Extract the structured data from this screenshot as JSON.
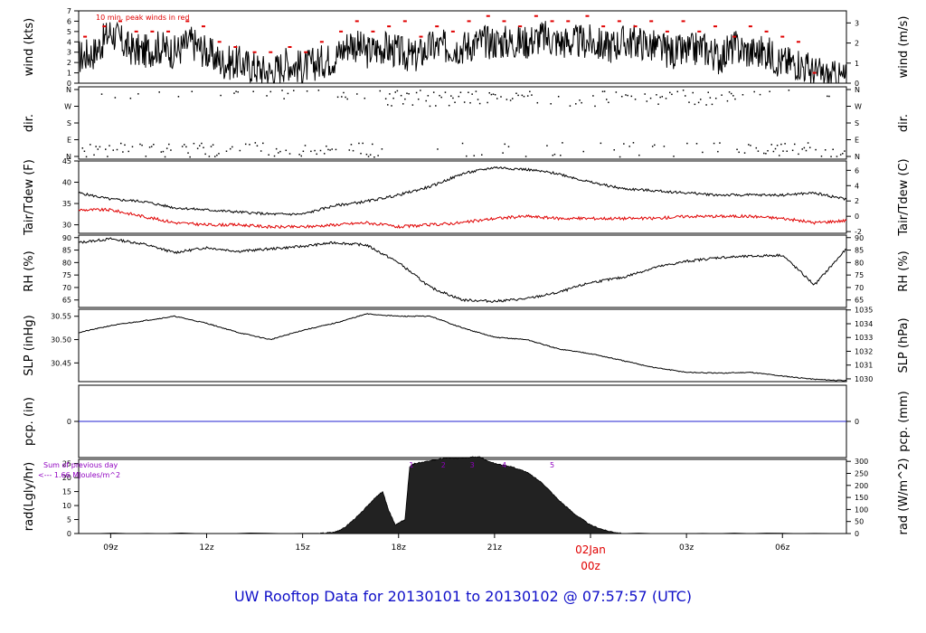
{
  "title": "UW Rooftop Data for 20130101  to  20130102 @ 07:57:57  (UTC)",
  "colors": {
    "axis": "#000000",
    "trace": "#000000",
    "dewpoint": "#e00000",
    "peak": "#e00000",
    "precip": "#2020d0",
    "annot": "#9000c0",
    "day_label": "#e00000",
    "title": "#1010c8"
  },
  "x_axis": {
    "ticks": [
      {
        "hour": 9,
        "label": "09z"
      },
      {
        "hour": 12,
        "label": "12z"
      },
      {
        "hour": 15,
        "label": "15z"
      },
      {
        "hour": 18,
        "label": "18z"
      },
      {
        "hour": 21,
        "label": "21z"
      },
      {
        "hour": 27,
        "label": "03z"
      },
      {
        "hour": 30,
        "label": "06z"
      }
    ],
    "day_marker": {
      "hour": 24,
      "day": "02Jan",
      "time": "00z"
    }
  },
  "panels": {
    "wind": {
      "left_label": "wind (kts)",
      "right_label": "wind (m/s)",
      "note": "10 min. peak winds in red",
      "left_ticks": [
        "0",
        "1",
        "2",
        "3",
        "4",
        "5",
        "6",
        "7"
      ],
      "right_ticks": [
        "0",
        "1",
        "2",
        "3"
      ]
    },
    "dir": {
      "left_label": "dir.",
      "right_label": "dir.",
      "ticks": [
        "N",
        "E",
        "S",
        "W",
        "N"
      ]
    },
    "temp": {
      "left_label": "Tair/Tdew (F)",
      "right_label": "Tair/Tdew (C)",
      "left_ticks": [
        "30",
        "35",
        "40",
        "45"
      ],
      "right_ticks": [
        "-2",
        "0",
        "2",
        "4",
        "6"
      ]
    },
    "rh": {
      "left_label": "RH (%)",
      "right_label": "RH (%)",
      "ticks": [
        "65",
        "70",
        "75",
        "80",
        "85",
        "90"
      ]
    },
    "slp": {
      "left_label": "SLP (inHg)",
      "right_label": "SLP (hPa)",
      "left_ticks": [
        "30.45",
        "30.50",
        "30.55"
      ],
      "right_ticks": [
        "1030",
        "1031",
        "1032",
        "1033",
        "1034",
        "1035"
      ]
    },
    "pcp": {
      "left_label": "pcp. (in)",
      "right_label": "pcp. (mm)",
      "left_ticks": [
        "0"
      ],
      "right_ticks": [
        "0"
      ]
    },
    "rad": {
      "left_label": "rad(Lgly/hr)",
      "right_label": "rad (W/m^2)",
      "left_ticks": [
        "0",
        "5",
        "10",
        "15",
        "20",
        "25"
      ],
      "right_ticks": [
        "0",
        "50",
        "100",
        "150",
        "200",
        "250",
        "300"
      ],
      "note1": "Sum of previous day",
      "note2": "<--- 1.66 MJoules/m^2",
      "markers": [
        "1",
        "2",
        "3",
        "4",
        "5"
      ]
    }
  },
  "chart_data": {
    "type": "line",
    "x_unit": "hour UTC (01 Jan 2013; 24 = 02Jan 00z)",
    "x_range": [
      8.0,
      32.0
    ],
    "series": [
      {
        "panel": "wind",
        "unit": "kts",
        "ylim": [
          0,
          7
        ],
        "x": [
          8,
          8.5,
          9,
          9.5,
          10,
          10.5,
          11,
          11.5,
          12,
          12.5,
          13,
          13.5,
          14,
          14.5,
          15,
          15.5,
          16,
          16.5,
          17,
          17.5,
          18,
          18.5,
          19,
          19.5,
          20,
          20.5,
          21,
          21.5,
          22,
          22.5,
          23,
          23.5,
          24,
          24.5,
          25,
          25.5,
          26,
          26.5,
          27,
          27.5,
          28,
          28.5,
          29,
          29.5,
          30,
          30.5,
          31,
          31.5,
          32
        ],
        "y": [
          2.5,
          3.0,
          5.0,
          3.5,
          3.0,
          3.5,
          3.0,
          4.0,
          3.0,
          2.0,
          2.0,
          1.5,
          1.0,
          2.0,
          1.5,
          2.0,
          2.5,
          4.0,
          3.0,
          3.5,
          3.0,
          2.5,
          3.5,
          3.5,
          3.5,
          4.0,
          4.0,
          4.0,
          4.0,
          4.5,
          4.0,
          4.0,
          4.0,
          3.5,
          4.0,
          4.0,
          3.5,
          3.0,
          3.0,
          3.5,
          2.5,
          3.5,
          3.0,
          3.0,
          2.0,
          2.0,
          1.0,
          0.5,
          0.5
        ]
      },
      {
        "panel": "wind",
        "name": "10 min. peak winds in red",
        "unit": "kts",
        "x": [
          8.2,
          8.8,
          9.3,
          9.8,
          10.3,
          10.8,
          11.4,
          11.9,
          12.4,
          12.9,
          13.5,
          14.0,
          14.6,
          15.1,
          15.6,
          16.2,
          16.7,
          17.2,
          17.7,
          18.2,
          18.7,
          19.2,
          19.7,
          20.2,
          20.8,
          21.3,
          21.8,
          22.3,
          22.8,
          23.3,
          23.9,
          24.4,
          24.9,
          25.4,
          25.9,
          26.4,
          26.9,
          27.4,
          27.9,
          28.5,
          29.0,
          29.5,
          30.0,
          30.5,
          31.0
        ],
        "y": [
          4.5,
          5.5,
          6.0,
          5.0,
          5.0,
          5.0,
          6.0,
          5.5,
          4.0,
          3.5,
          3.0,
          3.0,
          3.5,
          3.0,
          4.0,
          5.0,
          6.0,
          5.0,
          5.5,
          6.0,
          4.5,
          5.5,
          5.0,
          6.0,
          6.5,
          6.0,
          5.5,
          6.5,
          6.0,
          6.0,
          6.5,
          5.5,
          6.0,
          5.5,
          6.0,
          5.0,
          6.0,
          5.0,
          5.5,
          4.5,
          5.5,
          5.0,
          4.5,
          4.0,
          1.0
        ]
      },
      {
        "panel": "dir",
        "unit": "compass",
        "ylim": [
          "N",
          "E",
          "S",
          "W",
          "N"
        ],
        "x": [
          8,
          9,
          10,
          11,
          12,
          13,
          14,
          15,
          16,
          17,
          18,
          19,
          20,
          21,
          22,
          23,
          24,
          25,
          26,
          27,
          28,
          29,
          30,
          31,
          32
        ],
        "y": [
          "N",
          "N",
          "N",
          "N",
          "N",
          "N",
          "N",
          "N",
          "N",
          "N",
          "N",
          "N",
          "N",
          "N",
          "N",
          "N",
          "N",
          "N",
          "N",
          "N",
          "N",
          "N",
          "N",
          "N",
          "N"
        ]
      },
      {
        "panel": "temp",
        "name": "Tair",
        "unit": "F",
        "ylim": [
          28,
          45
        ],
        "x": [
          8,
          9,
          10,
          11,
          12,
          13,
          14,
          15,
          16,
          17,
          18,
          19,
          20,
          21,
          22,
          23,
          24,
          25,
          26,
          27,
          28,
          29,
          30,
          31,
          32
        ],
        "y": [
          37.5,
          36,
          35.5,
          34,
          33.5,
          33,
          32.5,
          32.5,
          34.5,
          35.5,
          37,
          39,
          42,
          43.5,
          43,
          42,
          40,
          38.5,
          38,
          37.5,
          37,
          37,
          37,
          37.5,
          36
        ]
      },
      {
        "panel": "temp",
        "name": "Tdew",
        "unit": "F",
        "ylim": [
          28,
          45
        ],
        "x": [
          8,
          9,
          10,
          11,
          12,
          13,
          14,
          15,
          16,
          17,
          18,
          19,
          20,
          21,
          22,
          23,
          24,
          25,
          26,
          27,
          28,
          29,
          30,
          31,
          32
        ],
        "y": [
          33.5,
          33.5,
          32,
          30.5,
          30,
          30,
          29.5,
          29.5,
          30,
          30.5,
          29.5,
          30,
          30.5,
          31.5,
          32,
          31.5,
          31.5,
          31.5,
          31.5,
          32,
          32,
          32,
          31.5,
          30.5,
          31
        ]
      },
      {
        "panel": "rh",
        "name": "RH",
        "unit": "%",
        "ylim": [
          62,
          91
        ],
        "x": [
          8,
          9,
          10,
          11,
          12,
          13,
          14,
          15,
          16,
          17,
          18,
          19,
          20,
          21,
          22,
          23,
          24,
          25,
          26,
          27,
          28,
          29,
          30,
          31,
          32
        ],
        "y": [
          88,
          89.5,
          87.5,
          84,
          86,
          84.5,
          85.5,
          86.5,
          88,
          87,
          80,
          70,
          65,
          64.5,
          65.5,
          68,
          72,
          74,
          78,
          80.5,
          82,
          82.5,
          83,
          71,
          85.5
        ]
      },
      {
        "panel": "slp",
        "name": "SLP",
        "unit": "inHg",
        "ylim": [
          30.41,
          30.565
        ],
        "x": [
          8,
          9,
          10,
          11,
          12,
          13,
          14,
          15,
          16,
          17,
          18,
          19,
          20,
          21,
          22,
          23,
          24,
          25,
          26,
          27,
          28,
          29,
          30,
          31,
          32
        ],
        "y": [
          30.515,
          30.53,
          30.54,
          30.55,
          30.535,
          30.515,
          30.5,
          30.52,
          30.535,
          30.555,
          30.55,
          30.55,
          30.525,
          30.505,
          30.5,
          30.48,
          30.47,
          30.455,
          30.44,
          30.43,
          30.428,
          30.43,
          30.422,
          30.415,
          30.412
        ]
      },
      {
        "panel": "pcp",
        "name": "precip",
        "unit": "in",
        "ylim": [
          -1,
          1
        ],
        "x": [
          8,
          32
        ],
        "y": [
          0,
          0
        ]
      },
      {
        "panel": "rad",
        "name": "radiation",
        "unit": "Lgly/hr",
        "ylim": [
          0,
          26.5
        ],
        "x": [
          8,
          15.5,
          16,
          16.3,
          16.8,
          17.2,
          17.5,
          17.7,
          17.9,
          18.2,
          18.35,
          18.5,
          19.0,
          19.5,
          20.0,
          20.5,
          21.0,
          21.5,
          22.0,
          22.5,
          23.0,
          23.5,
          24.0,
          24.5,
          25,
          32
        ],
        "y": [
          0,
          0,
          0.5,
          2,
          7,
          12,
          15,
          8,
          3,
          5,
          24,
          25,
          26,
          27,
          27,
          27.5,
          25,
          24,
          22,
          18,
          12,
          7,
          3,
          1,
          0,
          0
        ]
      }
    ]
  }
}
